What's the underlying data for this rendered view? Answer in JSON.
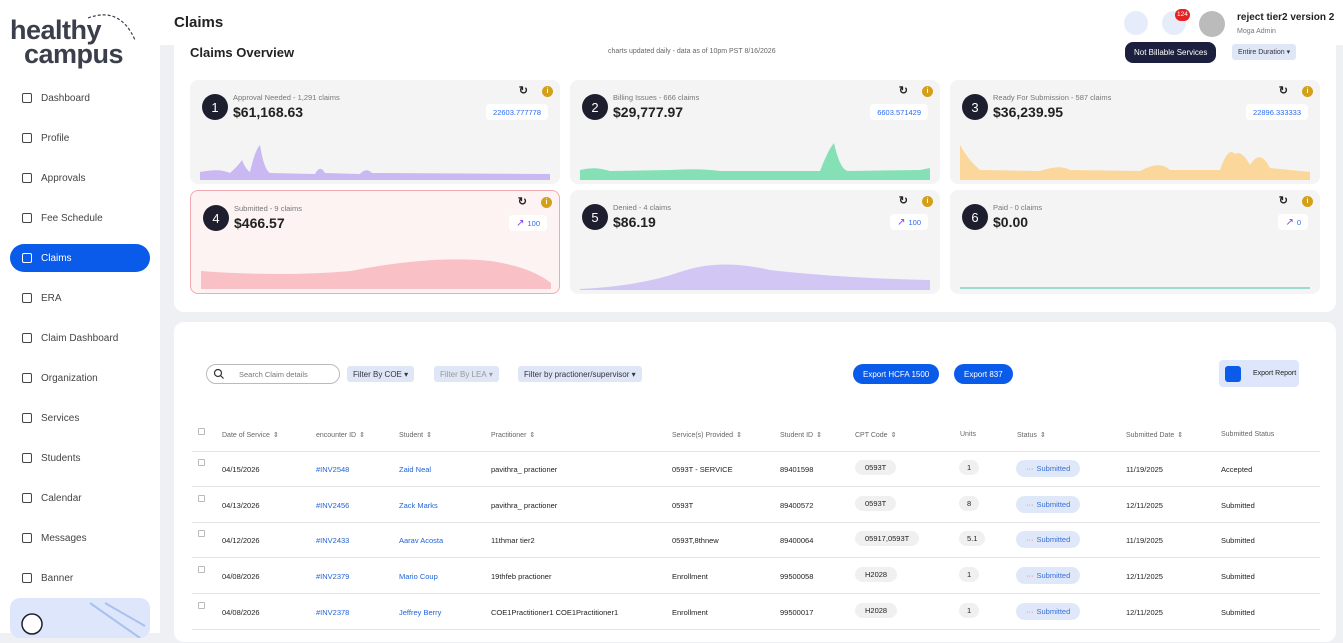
{
  "brand": {
    "top": "healthy",
    "bottom": "campus"
  },
  "nav": [
    "Dashboard",
    "Profile",
    "Approvals",
    "Fee Schedule",
    "Claims",
    "ERA",
    "Claim Dashboard",
    "Organization",
    "Services",
    "Students",
    "Calendar",
    "Messages",
    "Banner"
  ],
  "header": {
    "title": "Claims",
    "notifications": "124",
    "user_name": "reject tier2 version 2",
    "user_role": "Moga Admin"
  },
  "overview": {
    "title": "Claims Overview",
    "note": "charts updated daily - data as of 10pm PST 8/16/2026",
    "toggle": "Not Billable Services",
    "duration": "Entire Duration",
    "cards": [
      {
        "number": "1",
        "label": "Approval Needed - 1,291 claims",
        "amount": "$61,168.63",
        "badge": "22603.777778"
      },
      {
        "number": "2",
        "label": "Billing Issues - 666 claims",
        "amount": "$29,777.97",
        "badge": "6603.571429"
      },
      {
        "number": "3",
        "label": "Ready For Submission - 587 claims",
        "amount": "$36,239.95",
        "badge": "22896.333333"
      },
      {
        "number": "4",
        "label": "Submitted - 9 claims",
        "amount": "$466.57",
        "badge": "100"
      },
      {
        "number": "5",
        "label": "Denied - 4 claims",
        "amount": "$86.19",
        "badge": "100"
      },
      {
        "number": "6",
        "label": "Paid - 0 claims",
        "amount": "$0.00",
        "badge": "0"
      }
    ]
  },
  "filters": {
    "search": "Search Claim details",
    "coe": "Filter By COE",
    "lea": "Filter By LEA",
    "practitioner": "Filter by practioner/supervisor",
    "export_hcfa": "Export HCFA 1500",
    "export_837": "Export 837",
    "export_report": "Export Report"
  },
  "table": {
    "columns": [
      "Date of Service",
      "encounter ID",
      "Student",
      "Practitioner",
      "Service(s) Provided",
      "Student ID",
      "CPT Code",
      "Units",
      "Status",
      "Submitted Date",
      "Submitted Status"
    ],
    "rows": [
      [
        "04/15/2026",
        "#INV2548",
        "Zaid Neal",
        "pavithra_ practioner",
        "0593T - SERVICE",
        "89401598",
        "0593T",
        "1",
        "Submitted",
        "11/19/2025",
        "Accepted"
      ],
      [
        "04/13/2026",
        "#INV2456",
        "Zack Marks",
        "pavithra_ practioner",
        "0593T",
        "89400572",
        "0593T",
        "8",
        "Submitted",
        "12/11/2025",
        "Submitted"
      ],
      [
        "04/12/2026",
        "#INV2433",
        "Aarav Acosta",
        "11thmar tier2",
        "0593T,8thnew",
        "89400064",
        "05917,0593T",
        "5.1",
        "Submitted",
        "11/19/2025",
        "Submitted"
      ],
      [
        "04/08/2026",
        "#INV2379",
        "Mario Coup",
        "19thfeb practioner",
        "Enrollment",
        "99500058",
        "H2028",
        "1",
        "Submitted",
        "12/11/2025",
        "Submitted"
      ],
      [
        "04/08/2026",
        "#INV2378",
        "Jeffrey Berry",
        "COE1Practitioner1 COE1Practitioner1",
        "Enrollment",
        "99500017",
        "H2028",
        "1",
        "Submitted",
        "12/11/2025",
        "Submitted"
      ]
    ]
  }
}
